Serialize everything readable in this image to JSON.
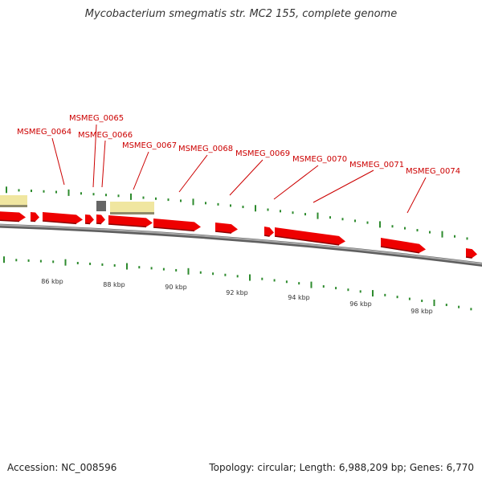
{
  "title": "Mycobacterium smegmatis str. MC2 155, complete genome",
  "footer": {
    "accession": "Accession: NC_008596",
    "summary": "Topology: circular; Length: 6,988,209 bp; Genes: 6,770"
  },
  "colors": {
    "gene": "#ee0000",
    "label": "#cc0000",
    "tick": "#2e8b2e",
    "backbone": "#888888",
    "feature_yellow": "#f0e6a0",
    "feature_gray": "#666666"
  },
  "scale_labels": [
    "86 kbp",
    "88 kbp",
    "90 kbp",
    "92 kbp",
    "94 kbp",
    "96 kbp",
    "98 kbp"
  ],
  "gene_labels": [
    "MSMEG_0064",
    "MSMEG_0065",
    "MSMEG_0066",
    "MSMEG_0067",
    "MSMEG_0068",
    "MSMEG_0069",
    "MSMEG_0070",
    "MSMEG_0071",
    "MSMEG_0074"
  ]
}
